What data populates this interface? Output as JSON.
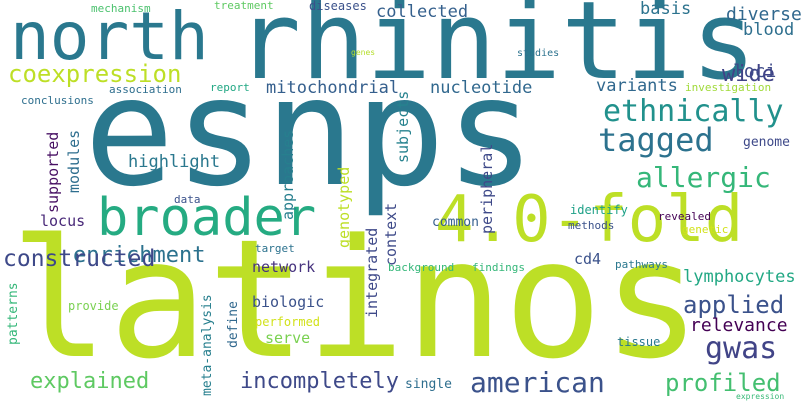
{
  "words": [
    {
      "text": "esnps",
      "color": "#2a788e"
    },
    {
      "text": "latinos",
      "color": "#bddf26"
    },
    {
      "text": "rhinitis",
      "color": "#2a788e"
    },
    {
      "text": "north",
      "color": "#2a788e"
    },
    {
      "text": "4.0-fold",
      "color": "#bddf26"
    },
    {
      "text": "broader",
      "color": "#25ab82"
    },
    {
      "text": "coexpression",
      "color": "#bddf26"
    },
    {
      "text": "ethnically",
      "color": "#21918c"
    },
    {
      "text": "tagged",
      "color": "#2c728e"
    },
    {
      "text": "allergic",
      "color": "#35b779"
    },
    {
      "text": "american",
      "color": "#3b528b"
    },
    {
      "text": "gwas",
      "color": "#414487"
    },
    {
      "text": "incompletely",
      "color": "#3e4989"
    },
    {
      "text": "explained",
      "color": "#5ec962"
    },
    {
      "text": "profiled",
      "color": "#44bf70"
    },
    {
      "text": "applied",
      "color": "#3b528b"
    },
    {
      "text": "enrichment",
      "color": "#2c728e"
    },
    {
      "text": "constructed",
      "color": "#3e4989"
    },
    {
      "text": "lymphocytes",
      "color": "#22a884"
    },
    {
      "text": "relevance",
      "color": "#440154"
    },
    {
      "text": "wide",
      "color": "#404387"
    },
    {
      "text": "diverse",
      "color": "#31688e"
    },
    {
      "text": "blood",
      "color": "#2e6f8e"
    },
    {
      "text": "loci",
      "color": "#3e4a89"
    },
    {
      "text": "variants",
      "color": "#31688e"
    },
    {
      "text": "mitochondrial",
      "color": "#355f8d"
    },
    {
      "text": "nucleotide",
      "color": "#31688e"
    },
    {
      "text": "highlight",
      "color": "#2a788e"
    },
    {
      "text": "collected",
      "color": "#35608d"
    },
    {
      "text": "basis",
      "color": "#2c738e"
    },
    {
      "text": "diseases",
      "color": "#3b528b"
    },
    {
      "text": "network",
      "color": "#46327e"
    },
    {
      "text": "biologic",
      "color": "#3b528b"
    },
    {
      "text": "serve",
      "color": "#7ad151"
    },
    {
      "text": "locus",
      "color": "#482878"
    },
    {
      "text": "modules",
      "color": "#2e6e8e"
    },
    {
      "text": "supported",
      "color": "#471063"
    },
    {
      "text": "approaches",
      "color": "#277f8e"
    },
    {
      "text": "subjects",
      "color": "#26828e"
    },
    {
      "text": "genotyped",
      "color": "#bddf26"
    },
    {
      "text": "peripheral",
      "color": "#3e4989"
    },
    {
      "text": "integrated",
      "color": "#3e4989"
    },
    {
      "text": "context",
      "color": "#3e4a89"
    },
    {
      "text": "define",
      "color": "#31688e"
    },
    {
      "text": "meta-analysis",
      "color": "#277f8e"
    },
    {
      "text": "genome",
      "color": "#3e4989"
    },
    {
      "text": "cd4",
      "color": "#3b528b"
    },
    {
      "text": "common",
      "color": "#355f8d"
    },
    {
      "text": "pathways",
      "color": "#2a788e"
    },
    {
      "text": "single",
      "color": "#2e6e8e"
    },
    {
      "text": "patterns",
      "color": "#35b779"
    },
    {
      "text": "provide",
      "color": "#7ad151"
    },
    {
      "text": "performed",
      "color": "#d2e21b"
    },
    {
      "text": "tissue",
      "color": "#2a788e"
    },
    {
      "text": "revealed",
      "color": "#440154"
    },
    {
      "text": "identify",
      "color": "#1fa188"
    },
    {
      "text": "genetic",
      "color": "#d2e21b"
    },
    {
      "text": "methods",
      "color": "#3b528b"
    },
    {
      "text": "background",
      "color": "#35b779"
    },
    {
      "text": "findings",
      "color": "#35b779"
    },
    {
      "text": "target",
      "color": "#2c728e"
    },
    {
      "text": "data",
      "color": "#3b528b"
    },
    {
      "text": "conclusions",
      "color": "#2e6f8e"
    },
    {
      "text": "association",
      "color": "#2e6e8e"
    },
    {
      "text": "report",
      "color": "#22a884"
    },
    {
      "text": "investigation",
      "color": "#a0da39"
    },
    {
      "text": "studies",
      "color": "#2c728e"
    },
    {
      "text": "genes",
      "color": "#b5de2b"
    },
    {
      "text": "mechanism",
      "color": "#4ac16d"
    },
    {
      "text": "treatment",
      "color": "#5ec962"
    },
    {
      "text": "expression",
      "color": "#38b977"
    }
  ]
}
